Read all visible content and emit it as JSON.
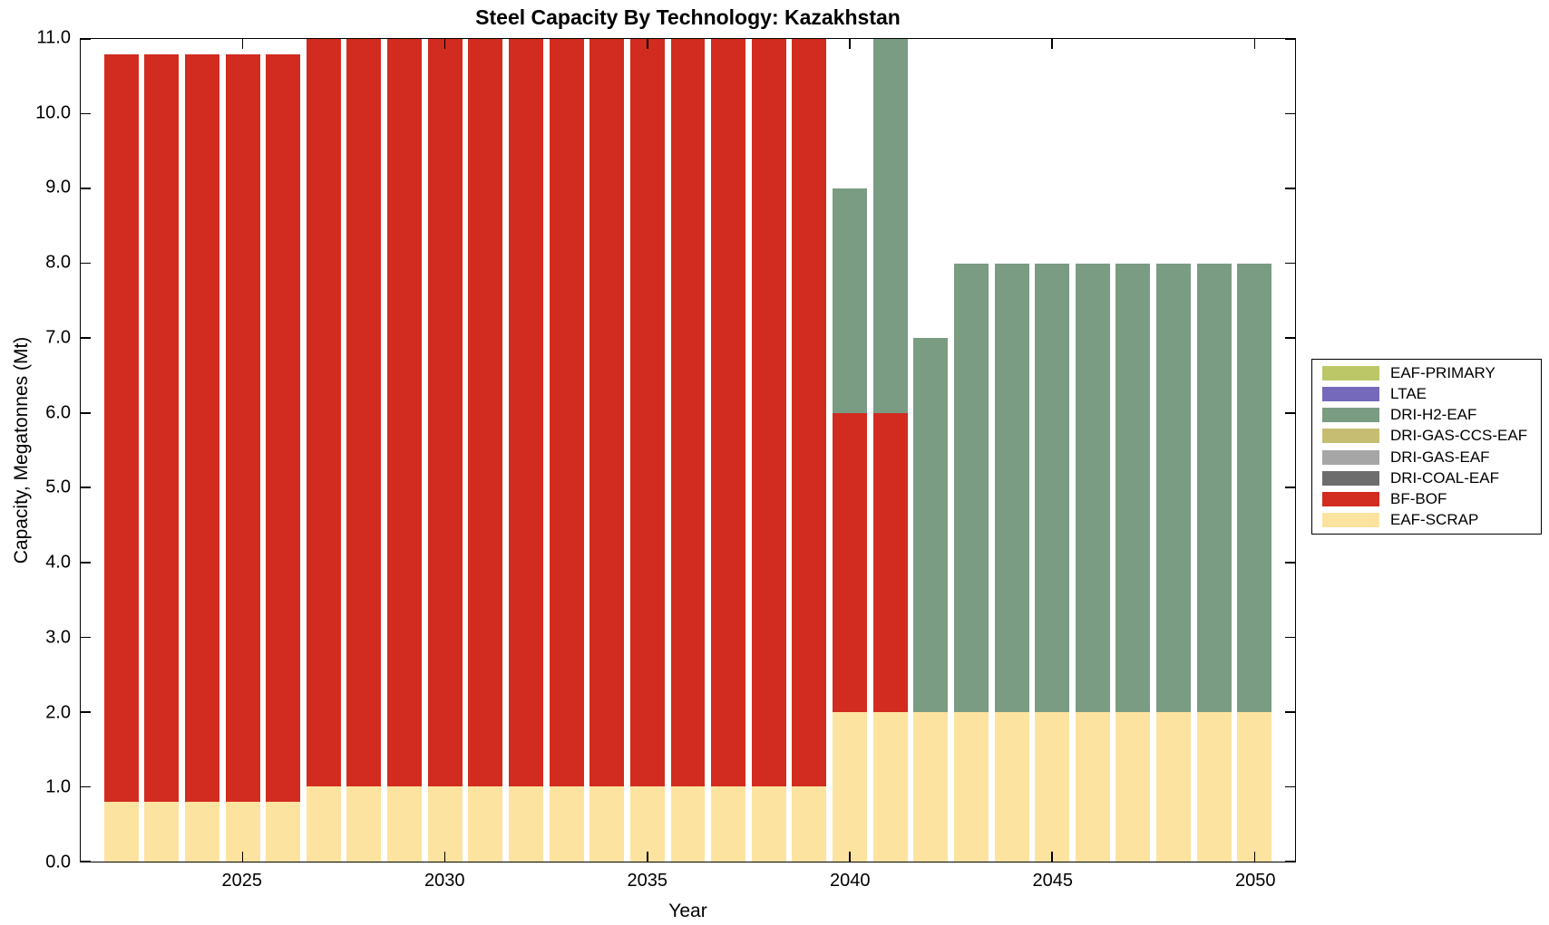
{
  "title": "Steel Capacity By Technology: Kazakhstan",
  "chart_data": {
    "type": "bar",
    "stacked": true,
    "title": "Steel Capacity By Technology: Kazakhstan",
    "xlabel": "Year",
    "ylabel": "Capacity, Megatonnes (Mt)",
    "xlim": [
      2021,
      2051
    ],
    "ylim": [
      0,
      11
    ],
    "x_ticks": [
      2025,
      2030,
      2035,
      2040,
      2045,
      2050
    ],
    "y_ticks": [
      {
        "value": 0,
        "label": "0.0"
      },
      {
        "value": 1,
        "label": "1.0"
      },
      {
        "value": 2,
        "label": "2.0"
      },
      {
        "value": 3,
        "label": "3.0"
      },
      {
        "value": 4,
        "label": "4.0"
      },
      {
        "value": 5,
        "label": "5.0"
      },
      {
        "value": 6,
        "label": "6.0"
      },
      {
        "value": 7,
        "label": "7.0"
      },
      {
        "value": 8,
        "label": "8.0"
      },
      {
        "value": 9,
        "label": "9.0"
      },
      {
        "value": 10,
        "label": "10.0"
      },
      {
        "value": 11,
        "label": "11.0"
      }
    ],
    "bar_width_years": 0.85,
    "grid": false,
    "categories": [
      2022,
      2023,
      2024,
      2025,
      2026,
      2027,
      2028,
      2029,
      2030,
      2031,
      2032,
      2033,
      2034,
      2035,
      2036,
      2037,
      2038,
      2039,
      2040,
      2041,
      2042,
      2043,
      2044,
      2045,
      2046,
      2047,
      2048,
      2049,
      2050
    ],
    "series": [
      {
        "name": "EAF-SCRAP",
        "color": "#fde3a0",
        "values": [
          0.8,
          0.8,
          0.8,
          0.8,
          0.8,
          1.0,
          1.0,
          1.0,
          1.0,
          1.0,
          1.0,
          1.0,
          1.0,
          1.0,
          1.0,
          1.0,
          1.0,
          1.0,
          2.0,
          2.0,
          2.0,
          2.0,
          2.0,
          2.0,
          2.0,
          2.0,
          2.0,
          2.0,
          2.0
        ]
      },
      {
        "name": "BF-BOF",
        "color": "#d22b20",
        "values": [
          10.0,
          10.0,
          10.0,
          10.0,
          10.0,
          10.0,
          10.0,
          10.0,
          10.0,
          10.0,
          10.0,
          10.0,
          10.0,
          10.0,
          10.0,
          10.0,
          10.0,
          10.0,
          4.0,
          4.0,
          0,
          0,
          0,
          0,
          0,
          0,
          0,
          0,
          0
        ]
      },
      {
        "name": "DRI-H2-EAF",
        "color": "#7a9c82",
        "values": [
          0,
          0,
          0,
          0,
          0,
          0,
          0,
          0,
          0,
          0,
          0,
          0,
          0,
          0,
          0,
          0,
          0,
          0,
          3.0,
          5.0,
          5.0,
          6.0,
          6.0,
          6.0,
          6.0,
          6.0,
          6.0,
          6.0,
          6.0
        ]
      }
    ],
    "legend": {
      "position": "right",
      "items": [
        {
          "label": "EAF-PRIMARY",
          "color": "#bcc868"
        },
        {
          "label": "LTAE",
          "color": "#7569bb"
        },
        {
          "label": "DRI-H2-EAF",
          "color": "#7a9c82"
        },
        {
          "label": "DRI-GAS-CCS-EAF",
          "color": "#c7bd72"
        },
        {
          "label": "DRI-GAS-EAF",
          "color": "#a6a6a6"
        },
        {
          "label": "DRI-COAL-EAF",
          "color": "#6d6d6d"
        },
        {
          "label": "BF-BOF",
          "color": "#d22b20"
        },
        {
          "label": "EAF-SCRAP",
          "color": "#fde3a0"
        }
      ]
    }
  }
}
